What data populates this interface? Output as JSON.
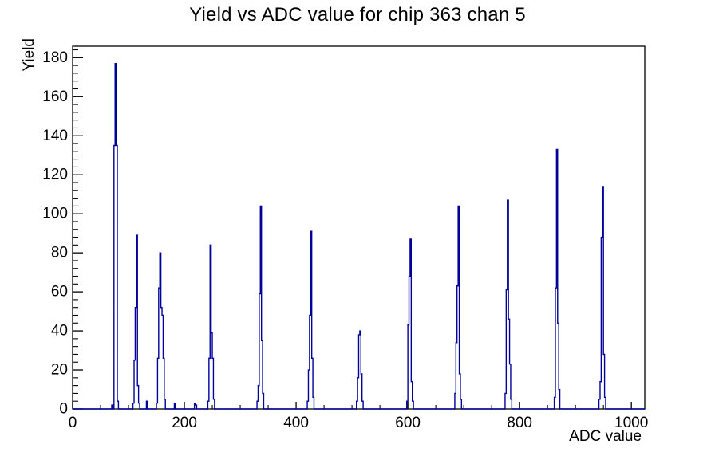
{
  "chart_data": {
    "type": "bar",
    "style": "root-step-histogram",
    "title": "Yield vs ADC value for chip 363 chan 5",
    "xlabel": "ADC value",
    "ylabel": "Yield",
    "xlim": [
      0,
      1024
    ],
    "ylim": [
      0,
      185.85
    ],
    "x_major_ticks": [
      0,
      200,
      400,
      600,
      800,
      1000
    ],
    "x_minor_step": 50,
    "y_major_ticks": [
      0,
      20,
      40,
      60,
      80,
      100,
      120,
      140,
      160,
      180
    ],
    "y_minor_step": 4,
    "grid": "off",
    "legend": "none",
    "line_color": "#000099",
    "axis_color": "#000000",
    "background_color": "#ffffff",
    "bin_width": 2,
    "bins": [
      [
        70,
        2
      ],
      [
        74,
        135
      ],
      [
        76,
        177
      ],
      [
        78,
        135
      ],
      [
        80,
        4
      ],
      [
        108,
        3
      ],
      [
        110,
        25
      ],
      [
        112,
        52
      ],
      [
        114,
        89
      ],
      [
        116,
        12
      ],
      [
        118,
        3
      ],
      [
        132,
        4
      ],
      [
        150,
        3
      ],
      [
        152,
        26
      ],
      [
        154,
        62
      ],
      [
        156,
        80
      ],
      [
        158,
        52
      ],
      [
        160,
        48
      ],
      [
        162,
        26
      ],
      [
        164,
        5
      ],
      [
        182,
        3
      ],
      [
        218,
        3
      ],
      [
        220,
        2
      ],
      [
        242,
        4
      ],
      [
        244,
        26
      ],
      [
        246,
        84
      ],
      [
        248,
        39
      ],
      [
        250,
        26
      ],
      [
        252,
        5
      ],
      [
        330,
        4
      ],
      [
        332,
        12
      ],
      [
        334,
        59
      ],
      [
        336,
        104
      ],
      [
        338,
        35
      ],
      [
        340,
        8
      ],
      [
        420,
        4
      ],
      [
        422,
        20
      ],
      [
        424,
        48
      ],
      [
        426,
        91
      ],
      [
        428,
        26
      ],
      [
        430,
        6
      ],
      [
        508,
        4
      ],
      [
        510,
        16
      ],
      [
        512,
        38
      ],
      [
        514,
        40
      ],
      [
        516,
        18
      ],
      [
        518,
        4
      ],
      [
        598,
        4
      ],
      [
        600,
        43
      ],
      [
        602,
        68
      ],
      [
        604,
        87
      ],
      [
        606,
        14
      ],
      [
        608,
        4
      ],
      [
        684,
        8
      ],
      [
        686,
        34
      ],
      [
        688,
        63
      ],
      [
        690,
        104
      ],
      [
        692,
        18
      ],
      [
        694,
        5
      ],
      [
        774,
        8
      ],
      [
        776,
        61
      ],
      [
        778,
        107
      ],
      [
        780,
        46
      ],
      [
        782,
        23
      ],
      [
        784,
        5
      ],
      [
        862,
        6
      ],
      [
        864,
        62
      ],
      [
        866,
        133
      ],
      [
        868,
        44
      ],
      [
        870,
        10
      ],
      [
        942,
        5
      ],
      [
        944,
        14
      ],
      [
        946,
        88
      ],
      [
        948,
        114
      ],
      [
        950,
        28
      ],
      [
        952,
        6
      ]
    ],
    "peaks_summary": [
      [
        76,
        177
      ],
      [
        114,
        89
      ],
      [
        156,
        80
      ],
      [
        246,
        84
      ],
      [
        336,
        104
      ],
      [
        426,
        91
      ],
      [
        514,
        40
      ],
      [
        604,
        87
      ],
      [
        690,
        104
      ],
      [
        778,
        107
      ],
      [
        866,
        133
      ],
      [
        948,
        114
      ]
    ]
  }
}
